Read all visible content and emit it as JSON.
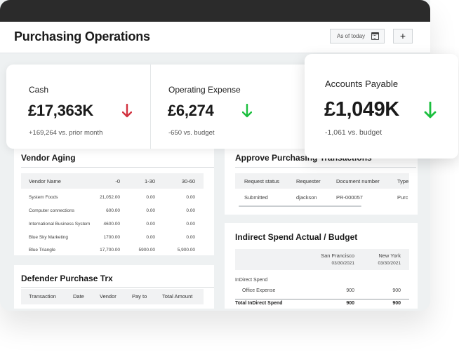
{
  "header": {
    "title": "Purchasing Operations",
    "date_label": "As of today",
    "add_label": "+"
  },
  "kpis": [
    {
      "label": "Cash",
      "value": "£17,363K",
      "sub": "+169,264 vs. prior month",
      "trend": "down",
      "trend_color": "#d2323f"
    },
    {
      "label": "Operating Expense",
      "value": "£6,274",
      "sub": "-650 vs. budget",
      "trend": "down",
      "trend_color": "#1bbf3e"
    },
    {
      "label": "Accounts Payable",
      "value": "£1,049K",
      "sub": "-1,061 vs. budget",
      "trend": "down",
      "trend_color": "#1bbf3e"
    }
  ],
  "vendor_aging": {
    "title": "Vendor Aging",
    "columns": [
      "Vendor Name",
      "-0",
      "1-30",
      "30-60"
    ],
    "rows": [
      [
        "System Foods",
        "21,052.00",
        "0.00",
        "0.00"
      ],
      [
        "Computer connections",
        "600.00",
        "0.00",
        "0.00"
      ],
      [
        "International Business System",
        "4600.00",
        "0.00",
        "0.00"
      ],
      [
        "Blue Sky Marketing",
        "1700.00",
        "0.00",
        "0.00"
      ],
      [
        "Blue Triangle",
        "17,700.00",
        "5900.00",
        "5,900.00"
      ]
    ]
  },
  "approve": {
    "title": "Approve Purchasing Transactions",
    "columns": [
      "Request status",
      "Requester",
      "Document number",
      "Type"
    ],
    "rows": [
      [
        "Submitted",
        "djackson",
        "PR-000057",
        "Purc"
      ]
    ]
  },
  "defender": {
    "title": "Defender Purchase Trx",
    "columns": [
      "Transaction",
      "Date",
      "Vendor",
      "Pay to",
      "Total Amount"
    ]
  },
  "indirect": {
    "title": "Indirect Spend Actual / Budget",
    "col1": {
      "city": "San Francisco",
      "date": "03/30/2021"
    },
    "col2": {
      "city": "New York",
      "date": "03/30/2021"
    },
    "group": "InDirect Spend",
    "row_label": "Office Expense",
    "row_v1": "900",
    "row_v2": "900",
    "total_label": "Total InDirect Spend",
    "total_v1": "900",
    "total_v2": "900"
  },
  "colors": {
    "topbar": "#2b2b2b",
    "background": "#eef1f2",
    "red_arrow": "#d2323f",
    "green_arrow": "#1bbf3e"
  }
}
